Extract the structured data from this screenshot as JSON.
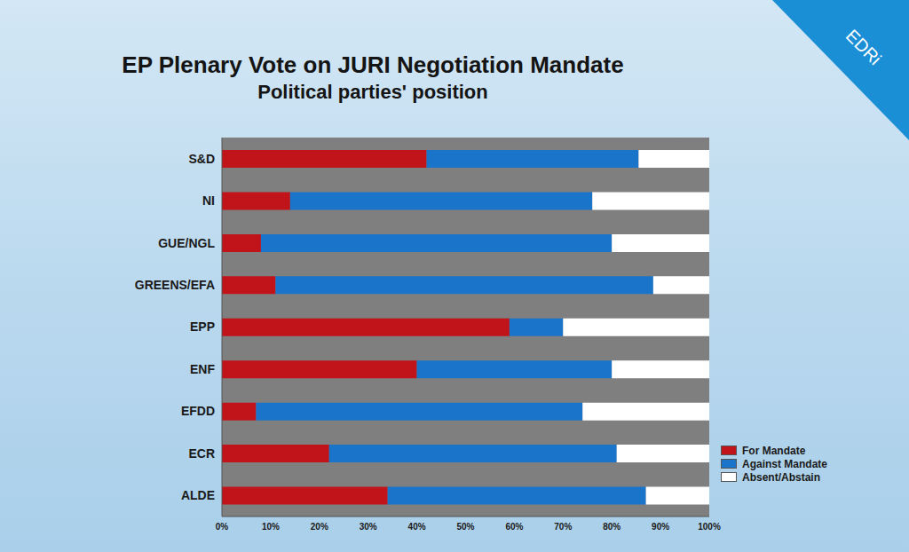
{
  "chart_data": {
    "type": "bar",
    "title": "EP Plenary Vote on JURI Negotiation Mandate",
    "subtitle": "Political parties' position",
    "orientation": "horizontal",
    "stacked": true,
    "grid": false,
    "legend": "right",
    "annotations": [
      "EDRi"
    ],
    "categories": [
      "S&D",
      "NI",
      "GUE/NGL",
      "GREENS/EFA",
      "EPP",
      "ENF",
      "EFDD",
      "ECR",
      "ALDE"
    ],
    "series": [
      {
        "name": "For Mandate",
        "color": "#c0141a",
        "values": [
          42,
          14,
          8,
          11,
          59,
          40,
          7,
          22,
          34
        ]
      },
      {
        "name": "Against Mandate",
        "color": "#1a74c9",
        "values": [
          43.5,
          62,
          72,
          77.5,
          11,
          40,
          67,
          59,
          53
        ]
      },
      {
        "name": "Absent/Abstain",
        "color": "#ffffff",
        "values": [
          14.5,
          24,
          20,
          11.5,
          30,
          20,
          26,
          19,
          13
        ]
      }
    ],
    "xlim": [
      0,
      100
    ],
    "xticks": [
      {
        "value": 0,
        "label": "0%"
      },
      {
        "value": 10,
        "label": "10%"
      },
      {
        "value": 20,
        "label": "20%"
      },
      {
        "value": 30,
        "label": "30%"
      },
      {
        "value": 40,
        "label": "40%"
      },
      {
        "value": 50,
        "label": "50%"
      },
      {
        "value": 60,
        "label": "60%"
      },
      {
        "value": 70,
        "label": "70%"
      },
      {
        "value": 80,
        "label": "80%"
      },
      {
        "value": 90,
        "label": "90%"
      },
      {
        "value": 100,
        "label": "100%"
      }
    ]
  }
}
